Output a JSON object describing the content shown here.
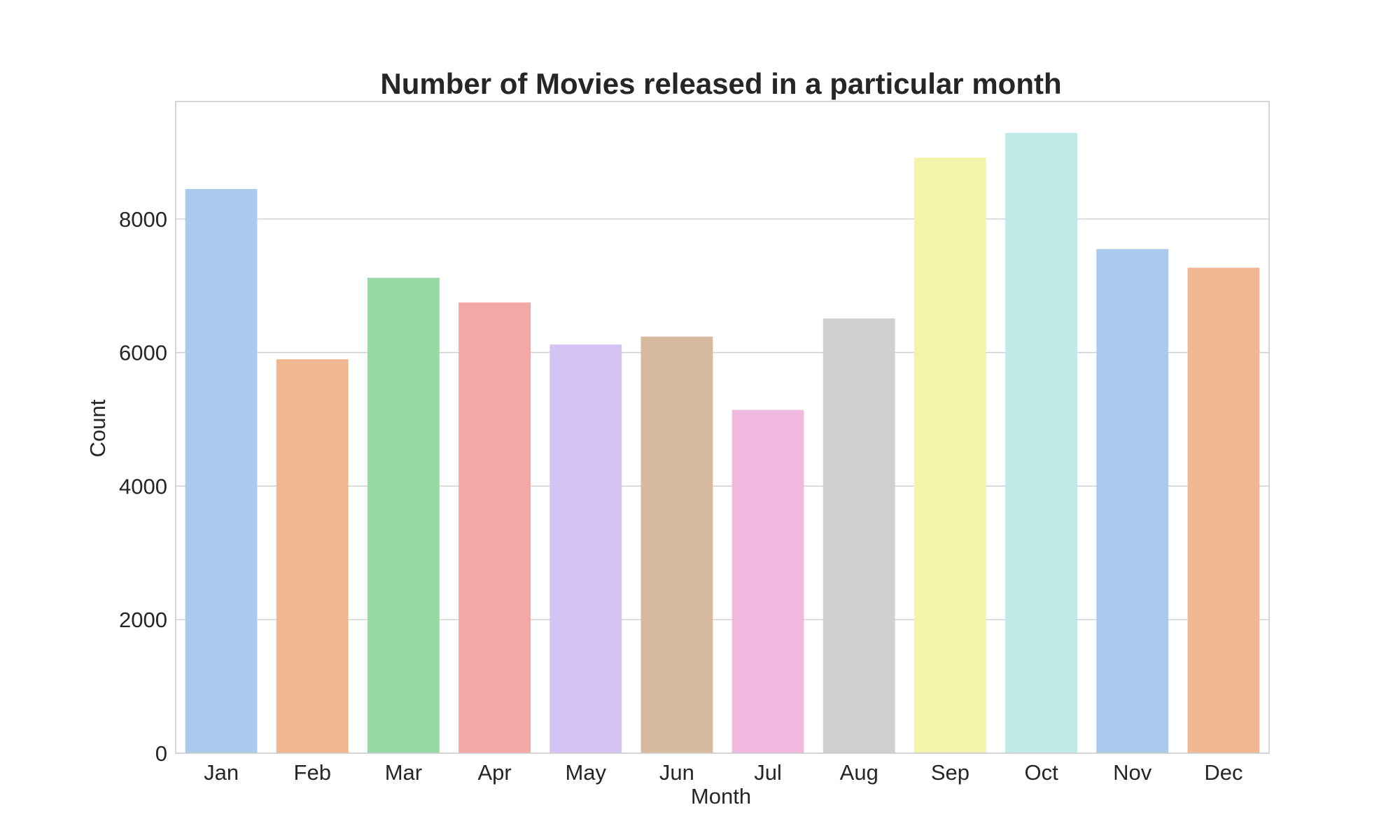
{
  "chart_data": {
    "type": "bar",
    "title": "Number of Movies released in a particular month",
    "xlabel": "Month",
    "ylabel": "Count",
    "categories": [
      "Jan",
      "Feb",
      "Mar",
      "Apr",
      "May",
      "Jun",
      "Jul",
      "Aug",
      "Sep",
      "Oct",
      "Nov",
      "Dec"
    ],
    "values": [
      8450,
      5900,
      7120,
      6750,
      6120,
      6240,
      5140,
      6510,
      8920,
      9290,
      7550,
      7270
    ],
    "ylim": [
      0,
      9760
    ],
    "yticks": [
      0,
      2000,
      4000,
      6000,
      8000
    ],
    "ytick_labels": [
      "0",
      "2000",
      "4000",
      "6000",
      "8000"
    ],
    "colors": [
      "#abc9ed",
      "#f1b790",
      "#97d9a5",
      "#f2a9a6",
      "#d4c3f5",
      "#d7b99f",
      "#f1b9df",
      "#d0d0d0",
      "#f4f3ab",
      "#c0eae8",
      "#abc9ed",
      "#f1b790"
    ],
    "grid": true,
    "legend": "none"
  }
}
